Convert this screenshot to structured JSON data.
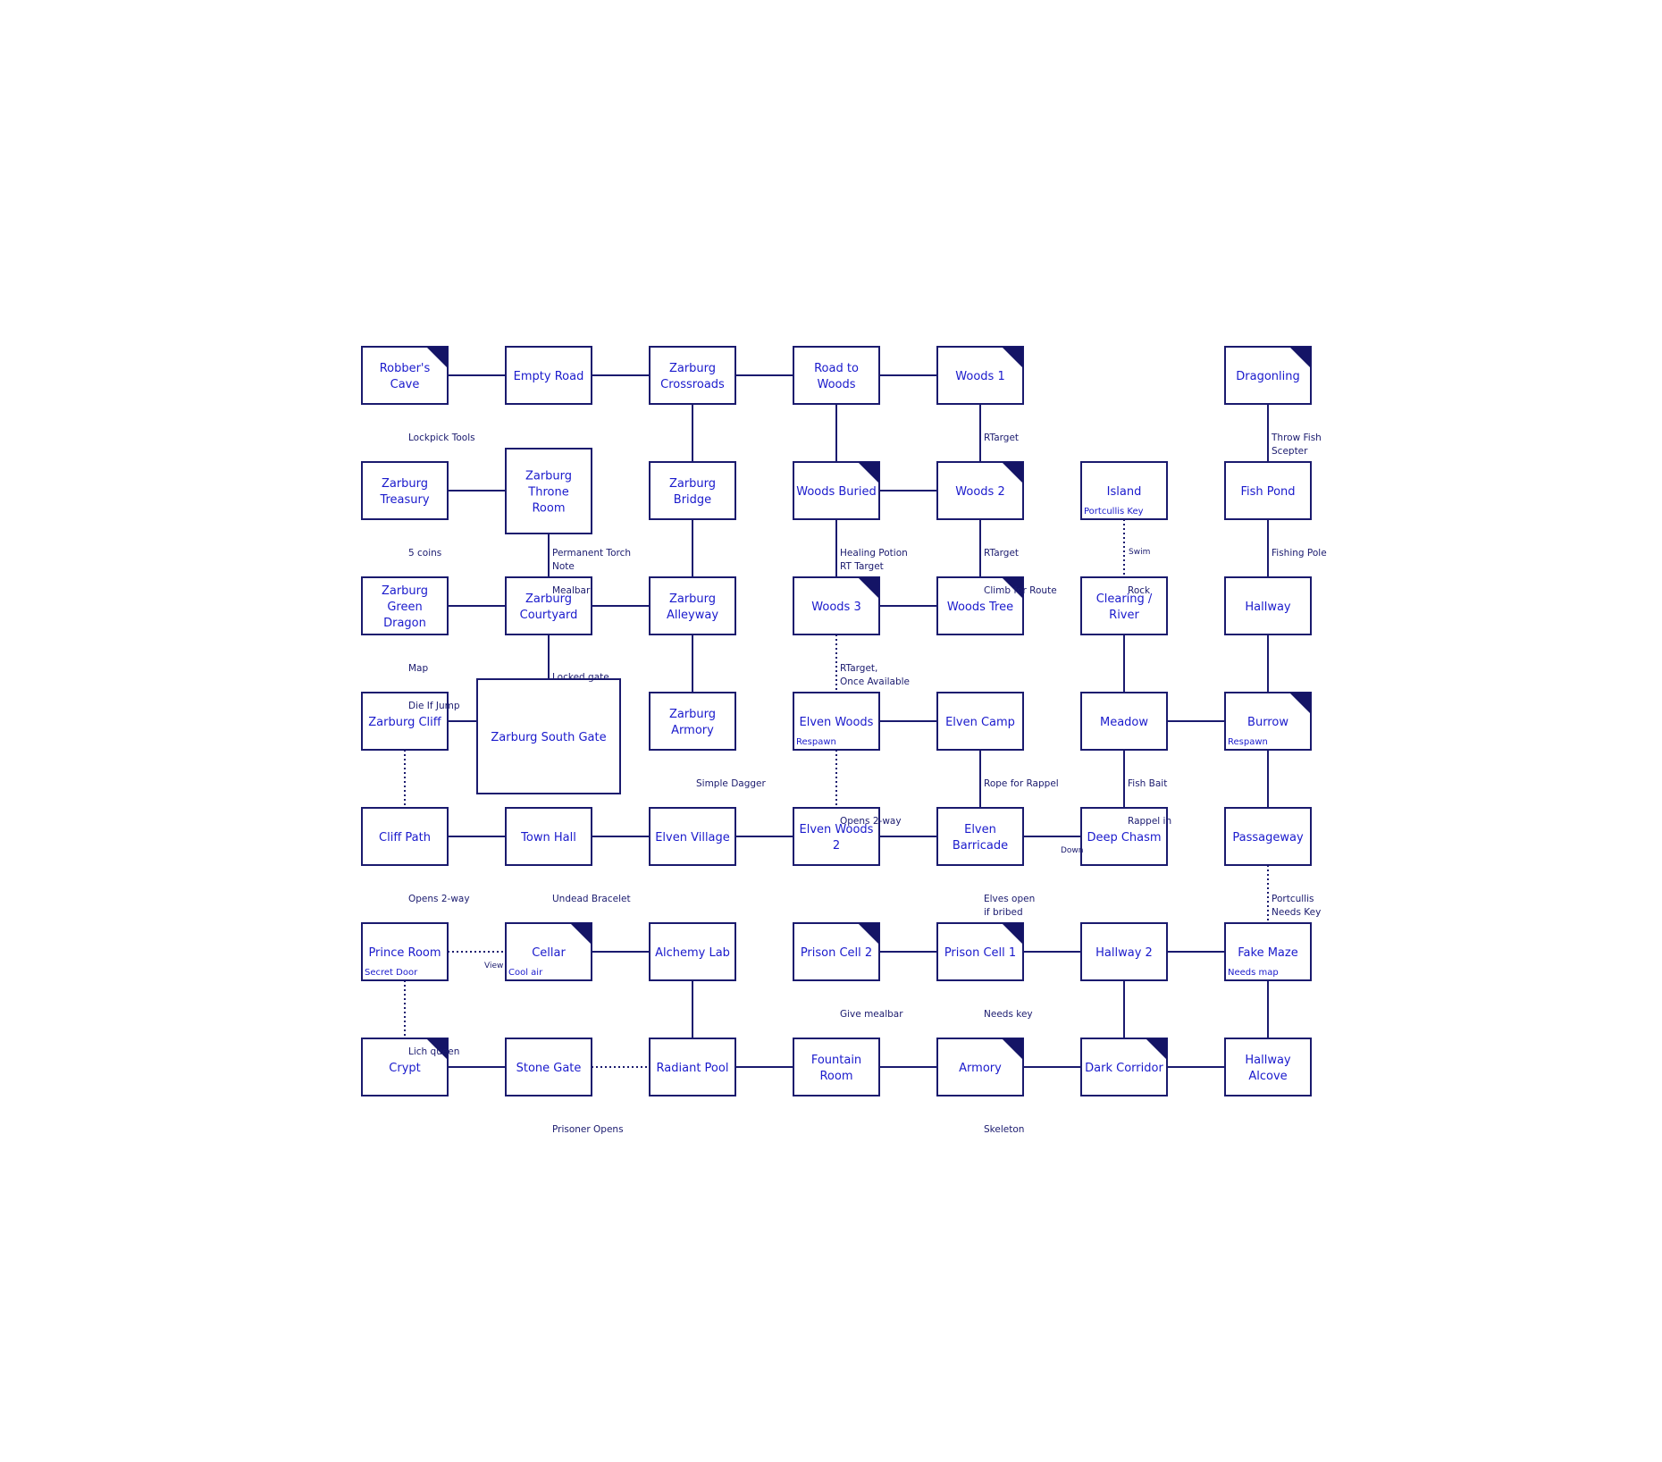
{
  "colors": {
    "room_text": "#1a1acc",
    "room_border": "#1a1a6e",
    "corner_marker": "#141466",
    "link_line": "#1a1a6e",
    "label_text": "#1a1a6e",
    "background": "#ffffff"
  },
  "rooms": [
    {
      "id": "robbers-cave",
      "label": [
        "Robber's",
        "Cave"
      ],
      "corner": true
    },
    {
      "id": "empty-road",
      "label": [
        "Empty Road"
      ]
    },
    {
      "id": "zarburg-crossroads",
      "label": [
        "Zarburg",
        "Crossroads"
      ]
    },
    {
      "id": "road-to-woods",
      "label": [
        "Road to",
        "Woods"
      ]
    },
    {
      "id": "woods-1",
      "label": [
        "Woods 1"
      ],
      "corner": true
    },
    {
      "id": "dragonling",
      "label": [
        "Dragonling"
      ],
      "corner": true
    },
    {
      "id": "zarburg-treasury",
      "label": [
        "Zarburg",
        "Treasury"
      ]
    },
    {
      "id": "zarburg-throne-room",
      "label": [
        "Zarburg",
        "Throne",
        "Room"
      ]
    },
    {
      "id": "zarburg-bridge",
      "label": [
        "Zarburg",
        "Bridge"
      ]
    },
    {
      "id": "woods-buried",
      "label": [
        "Woods Buried"
      ],
      "corner": true
    },
    {
      "id": "woods-2",
      "label": [
        "Woods 2"
      ],
      "corner": true
    },
    {
      "id": "island",
      "label": [
        "Island"
      ],
      "note": "Portcullis Key"
    },
    {
      "id": "fish-pond",
      "label": [
        "Fish Pond"
      ]
    },
    {
      "id": "zarburg-green-dragon",
      "label": [
        "Zarburg",
        "Green",
        "Dragon"
      ]
    },
    {
      "id": "zarburg-courtyard",
      "label": [
        "Zarburg",
        "Courtyard"
      ]
    },
    {
      "id": "zarburg-alleyway",
      "label": [
        "Zarburg",
        "Alleyway"
      ]
    },
    {
      "id": "woods-3",
      "label": [
        "Woods 3"
      ],
      "corner": true
    },
    {
      "id": "woods-tree",
      "label": [
        "Woods Tree"
      ],
      "corner": true
    },
    {
      "id": "clearing-river",
      "label": [
        "Clearing /",
        "River"
      ]
    },
    {
      "id": "hallway",
      "label": [
        "Hallway"
      ]
    },
    {
      "id": "zarburg-cliff",
      "label": [
        "Zarburg Cliff"
      ]
    },
    {
      "id": "zarburg-south-gate",
      "label": [
        "Zarburg South Gate"
      ]
    },
    {
      "id": "zarburg-armory",
      "label": [
        "Zarburg",
        "Armory"
      ]
    },
    {
      "id": "elven-woods",
      "label": [
        "Elven Woods"
      ],
      "note": "Respawn"
    },
    {
      "id": "elven-camp",
      "label": [
        "Elven Camp"
      ]
    },
    {
      "id": "meadow",
      "label": [
        "Meadow"
      ]
    },
    {
      "id": "burrow",
      "label": [
        "Burrow"
      ],
      "note": "Respawn",
      "corner": true
    },
    {
      "id": "cliff-path",
      "label": [
        "Cliff Path"
      ]
    },
    {
      "id": "town-hall",
      "label": [
        "Town Hall"
      ]
    },
    {
      "id": "elven-village",
      "label": [
        "Elven Village"
      ]
    },
    {
      "id": "elven-woods-2",
      "label": [
        "Elven Woods",
        "2"
      ]
    },
    {
      "id": "elven-barricade",
      "label": [
        "Elven",
        "Barricade"
      ]
    },
    {
      "id": "deep-chasm",
      "label": [
        "Deep Chasm"
      ]
    },
    {
      "id": "passageway",
      "label": [
        "Passageway"
      ]
    },
    {
      "id": "prince-room",
      "label": [
        "Prince Room"
      ],
      "note": "Secret Door"
    },
    {
      "id": "cellar",
      "label": [
        "Cellar"
      ],
      "note": "Cool air",
      "corner": true
    },
    {
      "id": "alchemy-lab",
      "label": [
        "Alchemy Lab"
      ]
    },
    {
      "id": "prison-cell-2",
      "label": [
        "Prison Cell 2"
      ],
      "corner": true
    },
    {
      "id": "prison-cell-1",
      "label": [
        "Prison Cell 1"
      ],
      "corner": true
    },
    {
      "id": "hallway-2",
      "label": [
        "Hallway 2"
      ]
    },
    {
      "id": "fake-maze",
      "label": [
        "Fake Maze"
      ],
      "note": "Needs map"
    },
    {
      "id": "crypt",
      "label": [
        "Crypt"
      ],
      "corner": true
    },
    {
      "id": "stone-gate",
      "label": [
        "Stone Gate"
      ]
    },
    {
      "id": "radiant-pool",
      "label": [
        "Radiant Pool"
      ]
    },
    {
      "id": "fountain-room",
      "label": [
        "Fountain",
        "Room"
      ]
    },
    {
      "id": "armory",
      "label": [
        "Armory"
      ],
      "corner": true
    },
    {
      "id": "dark-corridor",
      "label": [
        "Dark Corridor"
      ],
      "corner": true
    },
    {
      "id": "hallway-alcove",
      "label": [
        "Hallway",
        "Alcove"
      ]
    }
  ],
  "links": [
    {
      "from": "robbers-cave",
      "to": "empty-road"
    },
    {
      "from": "empty-road",
      "to": "zarburg-crossroads"
    },
    {
      "from": "zarburg-crossroads",
      "to": "road-to-woods"
    },
    {
      "from": "road-to-woods",
      "to": "woods-1"
    },
    {
      "from": "zarburg-crossroads",
      "to": "zarburg-bridge"
    },
    {
      "from": "road-to-woods",
      "to": "woods-buried"
    },
    {
      "from": "woods-1",
      "to": "woods-2"
    },
    {
      "from": "dragonling",
      "to": "fish-pond"
    },
    {
      "from": "zarburg-treasury",
      "to": "zarburg-throne-room"
    },
    {
      "from": "woods-buried",
      "to": "woods-2"
    },
    {
      "from": "zarburg-throne-room",
      "to": "zarburg-courtyard"
    },
    {
      "from": "zarburg-bridge",
      "to": "zarburg-alleyway"
    },
    {
      "from": "woods-buried",
      "to": "woods-3"
    },
    {
      "from": "woods-2",
      "to": "woods-tree"
    },
    {
      "from": "island",
      "to": "clearing-river",
      "dotted": true
    },
    {
      "from": "fish-pond",
      "to": "hallway"
    },
    {
      "from": "zarburg-green-dragon",
      "to": "zarburg-courtyard"
    },
    {
      "from": "zarburg-courtyard",
      "to": "zarburg-alleyway"
    },
    {
      "from": "woods-3",
      "to": "woods-tree"
    },
    {
      "from": "zarburg-courtyard",
      "to": "zarburg-south-gate"
    },
    {
      "from": "zarburg-alleyway",
      "to": "zarburg-armory"
    },
    {
      "from": "woods-3",
      "to": "elven-woods",
      "dotted": true
    },
    {
      "from": "clearing-river",
      "to": "meadow"
    },
    {
      "from": "hallway",
      "to": "burrow"
    },
    {
      "from": "zarburg-cliff",
      "to": "zarburg-south-gate"
    },
    {
      "from": "elven-woods",
      "to": "elven-camp"
    },
    {
      "from": "meadow",
      "to": "burrow"
    },
    {
      "from": "zarburg-cliff",
      "to": "cliff-path",
      "dotted": true
    },
    {
      "from": "elven-woods",
      "to": "elven-woods-2",
      "dotted": true
    },
    {
      "from": "elven-camp",
      "to": "elven-barricade"
    },
    {
      "from": "meadow",
      "to": "deep-chasm"
    },
    {
      "from": "burrow",
      "to": "passageway"
    },
    {
      "from": "cliff-path",
      "to": "town-hall"
    },
    {
      "from": "town-hall",
      "to": "elven-village"
    },
    {
      "from": "elven-village",
      "to": "elven-woods-2"
    },
    {
      "from": "elven-woods-2",
      "to": "elven-barricade"
    },
    {
      "from": "elven-barricade",
      "to": "deep-chasm"
    },
    {
      "from": "passageway",
      "to": "fake-maze",
      "dotted": true
    },
    {
      "from": "prince-room",
      "to": "cellar",
      "dotted": true
    },
    {
      "from": "cellar",
      "to": "alchemy-lab"
    },
    {
      "from": "prison-cell-2",
      "to": "prison-cell-1"
    },
    {
      "from": "prison-cell-1",
      "to": "hallway-2"
    },
    {
      "from": "hallway-2",
      "to": "fake-maze"
    },
    {
      "from": "prince-room",
      "to": "crypt",
      "dotted": true
    },
    {
      "from": "alchemy-lab",
      "to": "radiant-pool"
    },
    {
      "from": "hallway-2",
      "to": "dark-corridor"
    },
    {
      "from": "fake-maze",
      "to": "hallway-alcove"
    },
    {
      "from": "crypt",
      "to": "stone-gate"
    },
    {
      "from": "stone-gate",
      "to": "radiant-pool",
      "dotted": true
    },
    {
      "from": "radiant-pool",
      "to": "fountain-room"
    },
    {
      "from": "fountain-room",
      "to": "armory"
    },
    {
      "from": "armory",
      "to": "dark-corridor"
    },
    {
      "from": "dark-corridor",
      "to": "hallway-alcove"
    }
  ],
  "labels": [
    {
      "id": "lockpick-tools",
      "lines": [
        "Lockpick Tools"
      ]
    },
    {
      "id": "rtarget-woods1",
      "lines": [
        "RTarget"
      ]
    },
    {
      "id": "throw-fish",
      "lines": [
        "Throw Fish",
        "Scepter"
      ]
    },
    {
      "id": "five-coins",
      "lines": [
        "5 coins"
      ]
    },
    {
      "id": "permanent-torch",
      "lines": [
        "Permanent Torch",
        "Note"
      ]
    },
    {
      "id": "mealbar",
      "lines": [
        "Mealbar"
      ]
    },
    {
      "id": "healing-potion",
      "lines": [
        "Healing Potion",
        "RT Target"
      ]
    },
    {
      "id": "rtarget-woods2",
      "lines": [
        "RTarget"
      ]
    },
    {
      "id": "climb-for-route",
      "lines": [
        "Climb for Route"
      ]
    },
    {
      "id": "swim",
      "lines": [
        "Swim"
      ],
      "small": true
    },
    {
      "id": "rock",
      "lines": [
        "Rock"
      ]
    },
    {
      "id": "fishing-pole",
      "lines": [
        "Fishing Pole"
      ]
    },
    {
      "id": "map",
      "lines": [
        "Map"
      ]
    },
    {
      "id": "locked-gate",
      "lines": [
        "Locked gate"
      ]
    },
    {
      "id": "rtarget-once",
      "lines": [
        "RTarget,",
        "Once Available"
      ]
    },
    {
      "id": "die-if-jump",
      "lines": [
        "Die If Jump"
      ]
    },
    {
      "id": "simple-dagger",
      "lines": [
        "Simple Dagger"
      ]
    },
    {
      "id": "rope-for-rappel",
      "lines": [
        "Rope for Rappel"
      ]
    },
    {
      "id": "fish-bait",
      "lines": [
        "Fish Bait"
      ]
    },
    {
      "id": "opens-2way-woods",
      "lines": [
        "Opens 2-way"
      ]
    },
    {
      "id": "rappel-in",
      "lines": [
        "Rappel in"
      ]
    },
    {
      "id": "down",
      "lines": [
        "Down"
      ],
      "small": true
    },
    {
      "id": "opens-2way-cliff",
      "lines": [
        "Opens 2-way"
      ]
    },
    {
      "id": "undead-bracelet",
      "lines": [
        "Undead Bracelet"
      ]
    },
    {
      "id": "elves-open",
      "lines": [
        "Elves open",
        "if bribed"
      ]
    },
    {
      "id": "portcullis-needs-key",
      "lines": [
        "Portcullis",
        "Needs Key"
      ]
    },
    {
      "id": "view",
      "lines": [
        "View"
      ],
      "small": true
    },
    {
      "id": "give-mealbar",
      "lines": [
        "Give mealbar"
      ]
    },
    {
      "id": "needs-key",
      "lines": [
        "Needs key"
      ]
    },
    {
      "id": "lich-queen",
      "lines": [
        "Lich queen"
      ]
    },
    {
      "id": "prisoner-opens",
      "lines": [
        "Prisoner Opens"
      ]
    },
    {
      "id": "skeleton",
      "lines": [
        "Skeleton"
      ]
    }
  ]
}
